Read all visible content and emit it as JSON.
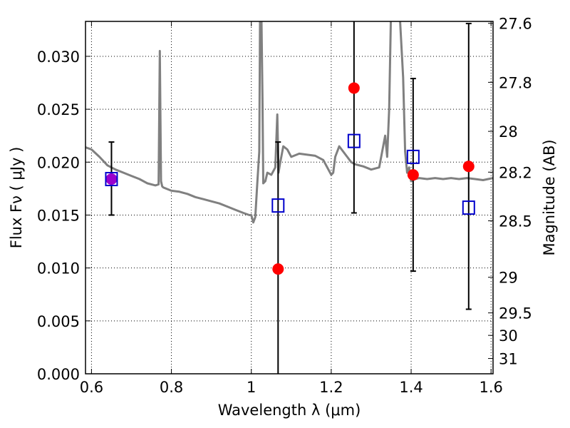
{
  "chart_data": {
    "type": "scatter",
    "title": "",
    "xlabel": "Wavelength  λ (μm)",
    "ylabel": "Flux  Fν  ( μJy )",
    "ylabel_right": "Magnitude (AB)",
    "xlim": [
      0.585,
      1.605
    ],
    "ylim": [
      0.0,
      0.0333
    ],
    "grid": true,
    "x_ticks": [
      {
        "value": 0.6,
        "label": "0.6"
      },
      {
        "value": 0.8,
        "label": "0.8"
      },
      {
        "value": 1.0,
        "label": "1"
      },
      {
        "value": 1.2,
        "label": "1.2"
      },
      {
        "value": 1.4,
        "label": "1.4"
      },
      {
        "value": 1.6,
        "label": "1.6"
      }
    ],
    "y_ticks": [
      {
        "value": 0.0,
        "label": "0.000"
      },
      {
        "value": 0.005,
        "label": "0.005"
      },
      {
        "value": 0.01,
        "label": "0.010"
      },
      {
        "value": 0.015,
        "label": "0.015"
      },
      {
        "value": 0.02,
        "label": "0.020"
      },
      {
        "value": 0.025,
        "label": "0.025"
      },
      {
        "value": 0.03,
        "label": "0.030"
      }
    ],
    "mag_ticks": [
      {
        "value": 27.6,
        "label": "27.6"
      },
      {
        "value": 27.8,
        "label": "27.8"
      },
      {
        "value": 28.0,
        "label": "28"
      },
      {
        "value": 28.2,
        "label": "28.2"
      },
      {
        "value": 28.5,
        "label": "28.5"
      },
      {
        "value": 29.0,
        "label": "29"
      },
      {
        "value": 29.5,
        "label": "29.5"
      },
      {
        "value": 30.0,
        "label": "30"
      },
      {
        "value": 31.0,
        "label": "31"
      }
    ],
    "colors": {
      "spectrum": "#808080",
      "observed": "#ff0000",
      "model_boxes": "#0000cc",
      "error_bars": "#000000",
      "overlap": "#9900cc"
    },
    "spectrum": {
      "x": [
        0.585,
        0.6,
        0.62,
        0.64,
        0.66,
        0.68,
        0.7,
        0.72,
        0.74,
        0.76,
        0.768,
        0.771,
        0.774,
        0.777,
        0.78,
        0.8,
        0.82,
        0.84,
        0.86,
        0.88,
        0.9,
        0.92,
        0.94,
        0.96,
        0.98,
        0.995,
        1.0,
        1.005,
        1.01,
        1.015,
        1.02,
        1.022,
        1.025,
        1.028,
        1.03,
        1.035,
        1.04,
        1.05,
        1.06,
        1.065,
        1.068,
        1.072,
        1.08,
        1.09,
        1.1,
        1.12,
        1.14,
        1.16,
        1.18,
        1.2,
        1.205,
        1.21,
        1.22,
        1.24,
        1.25,
        1.26,
        1.28,
        1.3,
        1.32,
        1.335,
        1.34,
        1.345,
        1.35,
        1.36,
        1.37,
        1.38,
        1.385,
        1.39,
        1.395,
        1.4,
        1.41,
        1.42,
        1.44,
        1.46,
        1.48,
        1.5,
        1.52,
        1.54,
        1.56,
        1.58,
        1.605
      ],
      "y": [
        0.0214,
        0.0212,
        0.0205,
        0.0197,
        0.0193,
        0.019,
        0.0187,
        0.0184,
        0.018,
        0.0178,
        0.0179,
        0.0305,
        0.0182,
        0.0177,
        0.0176,
        0.0173,
        0.0172,
        0.017,
        0.0167,
        0.0165,
        0.0163,
        0.0161,
        0.0158,
        0.0155,
        0.0152,
        0.015,
        0.015,
        0.0143,
        0.0148,
        0.018,
        0.021,
        0.035,
        0.035,
        0.026,
        0.018,
        0.0182,
        0.019,
        0.0188,
        0.0195,
        0.0245,
        0.019,
        0.0199,
        0.0215,
        0.0212,
        0.0205,
        0.0208,
        0.0207,
        0.0206,
        0.0202,
        0.0188,
        0.019,
        0.0205,
        0.0215,
        0.0205,
        0.02,
        0.0198,
        0.0196,
        0.0193,
        0.0195,
        0.0225,
        0.0205,
        0.025,
        0.035,
        0.035,
        0.035,
        0.028,
        0.021,
        0.019,
        0.0195,
        0.0182,
        0.0184,
        0.0185,
        0.0184,
        0.0185,
        0.0184,
        0.0185,
        0.0184,
        0.0185,
        0.0184,
        0.0183,
        0.0185
      ]
    },
    "observed": [
      {
        "x": 0.65,
        "y": 0.0184,
        "yerr_low": 0.0034,
        "yerr_high": 0.0035
      },
      {
        "x": 1.067,
        "y": 0.0099,
        "yerr_low": 0.0099,
        "yerr_high": 0.012
      },
      {
        "x": 1.257,
        "y": 0.027,
        "yerr_low": 0.0118,
        "yerr_high": 0.0068
      },
      {
        "x": 1.405,
        "y": 0.0188,
        "yerr_low": 0.0091,
        "yerr_high": 0.0091
      },
      {
        "x": 1.544,
        "y": 0.0196,
        "yerr_low": 0.0135,
        "yerr_high": 0.0135
      }
    ],
    "model": [
      {
        "x": 0.65,
        "y": 0.0184
      },
      {
        "x": 1.067,
        "y": 0.0159
      },
      {
        "x": 1.257,
        "y": 0.022
      },
      {
        "x": 1.405,
        "y": 0.0205
      },
      {
        "x": 1.544,
        "y": 0.0157
      }
    ]
  }
}
